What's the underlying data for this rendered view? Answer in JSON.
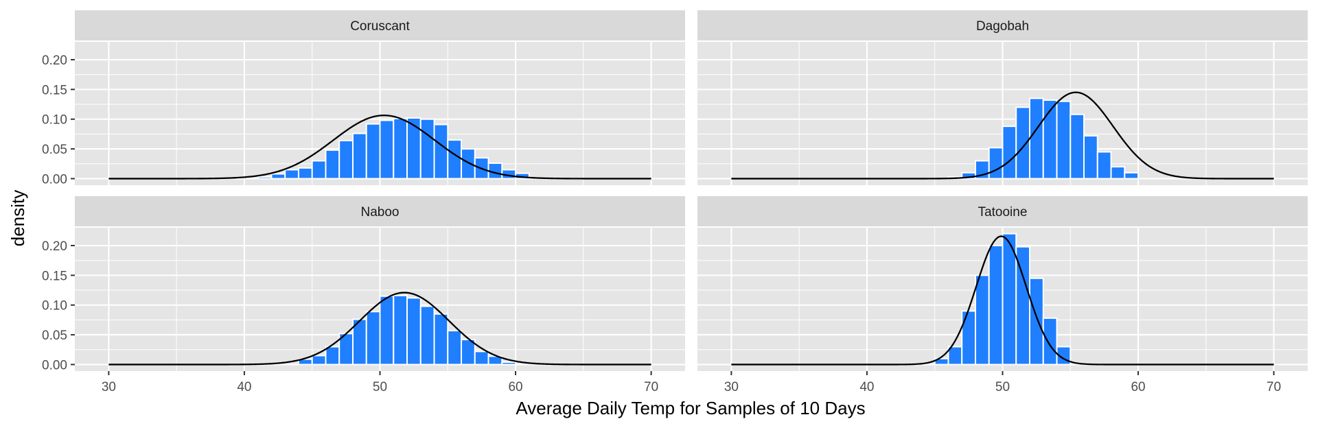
{
  "colors": {
    "bar_fill": "#1f7fff",
    "curve": "#000000"
  },
  "chart_data": {
    "type": "bar",
    "xlabel": "Average Daily Temp for Samples of 10 Days",
    "ylabel": "density",
    "xlim": [
      27.5,
      72.5
    ],
    "ylim": [
      -0.011,
      0.23
    ],
    "xticks": [
      30,
      40,
      50,
      60,
      70
    ],
    "xticklabels": [
      "30",
      "40",
      "50",
      "60",
      "70"
    ],
    "yticks": [
      0,
      0.05,
      0.1,
      0.15,
      0.2
    ],
    "yticklabels": [
      "0.00",
      "0.05",
      "0.10",
      "0.15",
      "0.20"
    ],
    "bin_width": 1,
    "curve_range": [
      30,
      70
    ],
    "grid": true,
    "facets": [
      {
        "title": "Coruscant",
        "mean": 50.3,
        "sd": 3.75,
        "bins_start": 41,
        "densities": [
          0.003,
          0.008,
          0.015,
          0.018,
          0.03,
          0.048,
          0.064,
          0.076,
          0.092,
          0.098,
          0.101,
          0.102,
          0.1,
          0.091,
          0.065,
          0.05,
          0.035,
          0.026,
          0.015,
          0.009
        ]
      },
      {
        "title": "Dagobah",
        "mean": 55.4,
        "sd": 2.75,
        "bins_start": 46,
        "densities": [
          0.003,
          0.01,
          0.03,
          0.052,
          0.088,
          0.12,
          0.135,
          0.132,
          0.13,
          0.108,
          0.072,
          0.045,
          0.02,
          0.01
        ]
      },
      {
        "title": "Naboo",
        "mean": 51.8,
        "sd": 3.3,
        "bins_start": 44,
        "densities": [
          0.009,
          0.015,
          0.03,
          0.052,
          0.076,
          0.089,
          0.115,
          0.116,
          0.112,
          0.098,
          0.085,
          0.057,
          0.042,
          0.022,
          0.014,
          0.004
        ]
      },
      {
        "title": "Tatooine",
        "mean": 49.9,
        "sd": 1.85,
        "bins_start": 45,
        "densities": [
          0.01,
          0.03,
          0.09,
          0.15,
          0.2,
          0.22,
          0.198,
          0.145,
          0.078,
          0.03
        ]
      }
    ]
  }
}
